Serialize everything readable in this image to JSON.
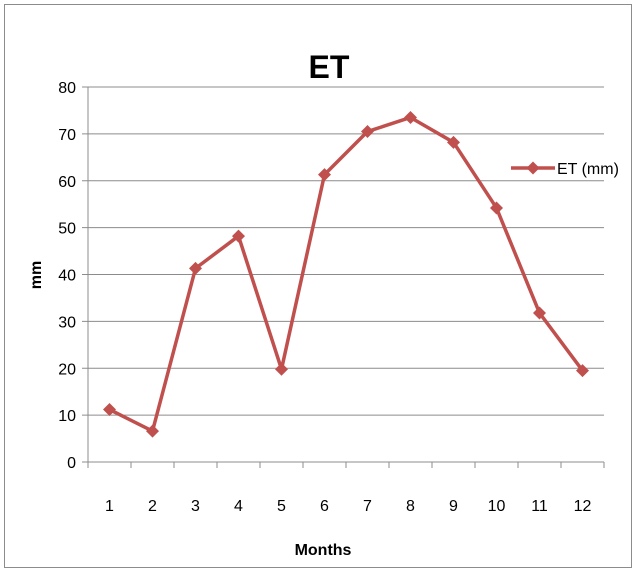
{
  "chart_data": {
    "type": "line",
    "title": "ET",
    "xlabel": "Months",
    "ylabel": "mm",
    "categories": [
      "1",
      "2",
      "3",
      "4",
      "5",
      "6",
      "7",
      "8",
      "9",
      "10",
      "11",
      "12"
    ],
    "series": [
      {
        "name": "ET (mm)",
        "color": "#c0504d",
        "values": [
          11.2,
          6.6,
          41.3,
          48.2,
          19.8,
          61.3,
          70.5,
          73.5,
          68.2,
          54.2,
          31.8,
          19.5
        ]
      }
    ],
    "ylim": [
      0,
      80
    ],
    "yticks": [
      0,
      10,
      20,
      30,
      40,
      50,
      60,
      70,
      80
    ],
    "grid": true,
    "legend": "right"
  }
}
